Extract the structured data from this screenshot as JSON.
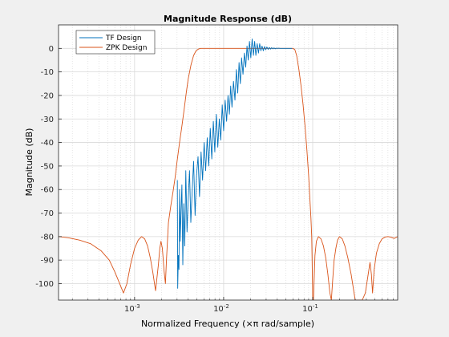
{
  "chart_data": {
    "type": "line",
    "title": "Magnitude Response (dB)",
    "xlabel": "Normalized Frequency (×π rad/sample)",
    "ylabel": "Magnitude (dB)",
    "xscale": "log",
    "xlim": [
      0.00014,
      0.9
    ],
    "ylim": [
      -107,
      10
    ],
    "grid": true,
    "minor_grid": true,
    "legend_location": "top-left",
    "x_major_ticks": [
      {
        "value": 0.001,
        "base": "10",
        "exp": "-3"
      },
      {
        "value": 0.01,
        "base": "10",
        "exp": "-2"
      },
      {
        "value": 0.1,
        "base": "10",
        "exp": "-1"
      }
    ],
    "y_ticks": [
      {
        "value": 0,
        "label": "0"
      },
      {
        "value": -10,
        "label": "-10"
      },
      {
        "value": -20,
        "label": "-20"
      },
      {
        "value": -30,
        "label": "-30"
      },
      {
        "value": -40,
        "label": "-40"
      },
      {
        "value": -50,
        "label": "-50"
      },
      {
        "value": -60,
        "label": "-60"
      },
      {
        "value": -70,
        "label": "-70"
      },
      {
        "value": -80,
        "label": "-80"
      },
      {
        "value": -90,
        "label": "-90"
      },
      {
        "value": -100,
        "label": "-100"
      }
    ],
    "series": [
      {
        "name": "TF Design",
        "color": "#0072bd",
        "x": [
          0.00302,
          0.00305,
          0.0031,
          0.00315,
          0.0032,
          0.00326,
          0.00332,
          0.0034,
          0.00348,
          0.00356,
          0.00366,
          0.00376,
          0.00388,
          0.004,
          0.00414,
          0.00428,
          0.00444,
          0.0046,
          0.00478,
          0.00496,
          0.00516,
          0.00536,
          0.00558,
          0.0058,
          0.00604,
          0.00628,
          0.00654,
          0.0068,
          0.00708,
          0.00736,
          0.00766,
          0.00796,
          0.00828,
          0.0086,
          0.00894,
          0.00928,
          0.00964,
          0.01,
          0.0104,
          0.0108,
          0.0112,
          0.0116,
          0.012,
          0.0124,
          0.0129,
          0.0134,
          0.0139,
          0.0144,
          0.0149,
          0.0154,
          0.0159,
          0.0165,
          0.0171,
          0.0177,
          0.0183,
          0.0189,
          0.0195,
          0.0202,
          0.0209,
          0.0216,
          0.0223,
          0.023,
          0.0238,
          0.0246,
          0.0254,
          0.0262,
          0.027,
          0.0279,
          0.0288,
          0.0297,
          0.0306,
          0.0316,
          0.0326,
          0.0336,
          0.0346,
          0.0357,
          0.0368,
          0.038,
          0.0392,
          0.0404,
          0.0416,
          0.0429,
          0.0442,
          0.0455,
          0.0469,
          0.0483,
          0.0497,
          0.0512,
          0.0527,
          0.0542,
          0.0557,
          0.0572,
          0.0588
        ],
        "y": [
          -56,
          -102,
          -88,
          -94,
          -60,
          -82,
          -70,
          -58,
          -92,
          -66,
          -84,
          -52,
          -78,
          -64,
          -52,
          -74,
          -60,
          -48,
          -71,
          -54,
          -46,
          -63,
          -44,
          -56,
          -40,
          -52,
          -38,
          -50,
          -34,
          -47,
          -31,
          -44,
          -28,
          -42,
          -30,
          -39,
          -24,
          -35,
          -22,
          -31,
          -20,
          -28,
          -16,
          -25,
          -14,
          -22,
          -9,
          -19,
          -6,
          -15,
          -4,
          -11,
          -2,
          -8,
          1,
          -5,
          3,
          -4,
          4,
          -3,
          3,
          -3,
          2,
          -2,
          2,
          -1,
          1,
          -1,
          0.8,
          -0.6,
          0.6,
          -0.4,
          0.4,
          -0.3,
          0.3,
          -0.2,
          0.2,
          -0.2,
          0.1,
          0,
          0.1,
          0,
          0,
          0,
          0,
          0,
          0,
          0,
          0,
          0,
          0,
          0,
          0
        ]
      },
      {
        "name": "ZPK Design",
        "color": "#d95319",
        "x": [
          0.00014,
          0.00018,
          0.00024,
          0.00032,
          0.00042,
          0.00052,
          0.0006,
          0.00068,
          0.00075,
          0.00082,
          0.0009,
          0.001,
          0.0011,
          0.0012,
          0.0013,
          0.0014,
          0.0015,
          0.0016,
          0.00172,
          0.00185,
          0.00192,
          0.00198,
          0.00205,
          0.00215,
          0.00222,
          0.00228,
          0.0024,
          0.00255,
          0.0027,
          0.00285,
          0.003,
          0.0032,
          0.0034,
          0.0036,
          0.0038,
          0.004,
          0.0043,
          0.0046,
          0.0049,
          0.0052,
          0.0055,
          0.006,
          0.008,
          0.012,
          0.02,
          0.03,
          0.04,
          0.05,
          0.056,
          0.06,
          0.063,
          0.066,
          0.07,
          0.074,
          0.078,
          0.082,
          0.086,
          0.09,
          0.093,
          0.0955,
          0.0975,
          0.0985,
          0.1,
          0.102,
          0.106,
          0.11,
          0.116,
          0.124,
          0.132,
          0.14,
          0.148,
          0.156,
          0.162,
          0.168,
          0.174,
          0.182,
          0.19,
          0.2,
          0.215,
          0.23,
          0.248,
          0.27,
          0.3,
          0.33,
          0.36,
          0.39,
          0.42,
          0.44,
          0.456,
          0.47,
          0.49,
          0.52,
          0.56,
          0.6,
          0.65,
          0.7,
          0.76,
          0.82,
          0.9
        ],
        "y": [
          -80,
          -80.5,
          -81.5,
          -83,
          -86,
          -90,
          -95,
          -100,
          -104,
          -100,
          -92,
          -85,
          -81.5,
          -80,
          -81,
          -84,
          -89,
          -95,
          -103,
          -92,
          -85,
          -82,
          -85,
          -95,
          -100,
          -90,
          -74,
          -67,
          -61,
          -55,
          -48,
          -40,
          -33,
          -26,
          -19,
          -13,
          -7,
          -3,
          -1,
          -0.3,
          0,
          0,
          0,
          0,
          0,
          0,
          0,
          0,
          0,
          0,
          -0.5,
          -3,
          -9,
          -16,
          -24,
          -33,
          -43,
          -54,
          -64,
          -72,
          -80,
          -90,
          -107,
          -107,
          -88,
          -82,
          -80,
          -81,
          -84,
          -89,
          -96,
          -104,
          -107,
          -98,
          -90,
          -85,
          -81.5,
          -80,
          -81,
          -84,
          -89,
          -96,
          -107,
          -107,
          -107,
          -104,
          -96,
          -91,
          -96,
          -104,
          -94,
          -87,
          -83,
          -81,
          -80.2,
          -80,
          -80.3,
          -80.8,
          -80
        ]
      }
    ]
  }
}
